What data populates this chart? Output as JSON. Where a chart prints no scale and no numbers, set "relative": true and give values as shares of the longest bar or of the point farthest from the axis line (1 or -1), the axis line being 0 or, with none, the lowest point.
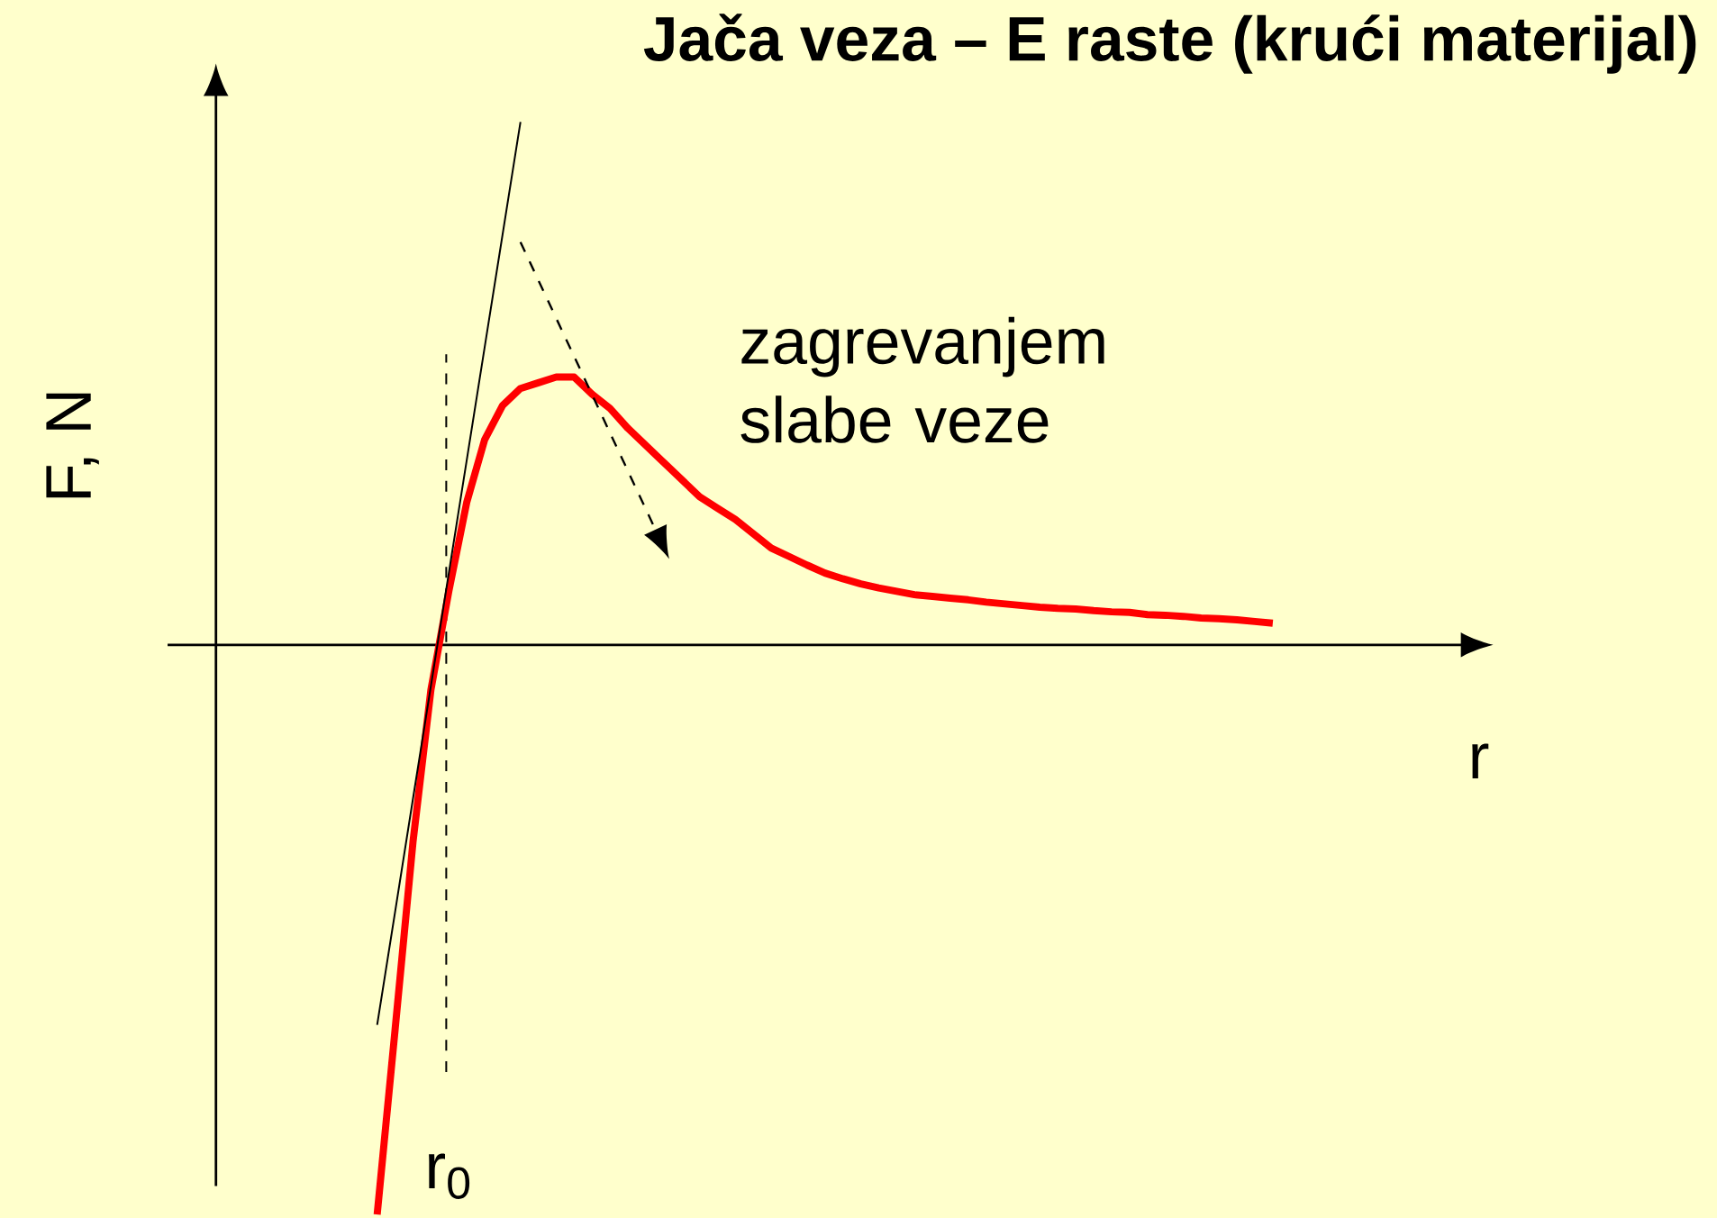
{
  "chart_data": {
    "type": "line",
    "relative": true,
    "title": "Jača veza – E raste (krući materijal)",
    "xlabel": "r",
    "ylabel": "F, N",
    "annotations": [
      "zagrevanjem slabe veze",
      "r$_{0}$"
    ],
    "marker": "none",
    "line_style": "solid",
    "categories": [
      null,
      null,
      null,
      null,
      null,
      null,
      null,
      null,
      null,
      null,
      null,
      null,
      null,
      null,
      null,
      null,
      null,
      null,
      null,
      null,
      null,
      null,
      null,
      null,
      null,
      null,
      null,
      null,
      null,
      null,
      null,
      null,
      null,
      null,
      null,
      null,
      null,
      null,
      null,
      null,
      null,
      null,
      null,
      null,
      null,
      null,
      null,
      null,
      null,
      null,
      null
    ],
    "series": [
      {
        "color": "#ff0000",
        "values": [
          -1.0,
          -0.676,
          -0.346,
          -0.079,
          0.094,
          0.25,
          0.36,
          0.42,
          0.45,
          0.46,
          0.47,
          0.47,
          0.44,
          0.415,
          0.38,
          0.35,
          0.32,
          0.29,
          0.26,
          0.24,
          0.22,
          0.195,
          0.17,
          0.155,
          0.14,
          0.126,
          0.116,
          0.107,
          0.1,
          0.094,
          0.088,
          0.085,
          0.082,
          0.079,
          0.075,
          0.072,
          0.069,
          0.066,
          0.064,
          0.063,
          0.06,
          0.058,
          0.057,
          0.053,
          0.052,
          0.05,
          0.047,
          0.046,
          0.044,
          0.041,
          0.038
        ]
      },
      {
        "color": "#000000",
        "values": [
          -0.667,
          -0.469,
          -0.27,
          -0.072,
          0.126,
          0.324,
          0.522,
          0.72,
          0.918,
          null,
          null,
          null,
          null,
          null,
          null,
          null,
          null,
          null,
          null,
          null,
          null,
          null,
          null,
          null,
          null,
          null,
          null,
          null,
          null,
          null,
          null,
          null,
          null,
          null,
          null,
          null,
          null,
          null,
          null,
          null,
          null,
          null,
          null,
          null,
          null,
          null,
          null,
          null,
          null,
          null,
          null
        ]
      }
    ]
  }
}
